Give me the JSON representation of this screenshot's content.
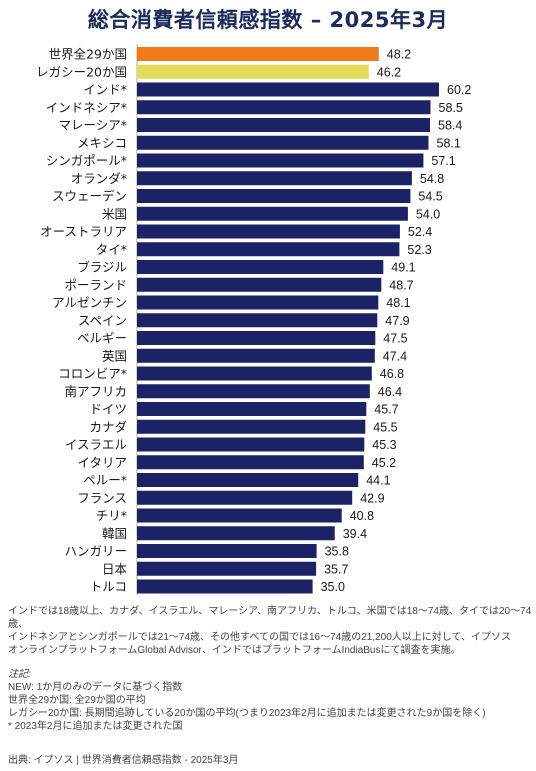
{
  "title": "総合消費者信頼感指数 – 2025年3月",
  "chart_data": {
    "type": "bar",
    "orientation": "horizontal",
    "categories": [
      "世界全29か国",
      "レガシー20か国",
      "インド*",
      "インドネシア*",
      "マレーシア*",
      "メキシコ",
      "シンガポール*",
      "オランダ*",
      "スウェーデン",
      "米国",
      "オーストラリア",
      "タイ*",
      "ブラジル",
      "ポーランド",
      "アルゼンチン",
      "スペイン",
      "ベルギー",
      "英国",
      "コロンビア*",
      "南アフリカ",
      "ドイツ",
      "カナダ",
      "イスラエル",
      "イタリア",
      "ペルー*",
      "フランス",
      "チリ*",
      "韓国",
      "ハンガリー",
      "日本",
      "トルコ"
    ],
    "values": [
      48.2,
      46.2,
      60.2,
      58.5,
      58.4,
      58.1,
      57.1,
      54.8,
      54.5,
      54.0,
      52.4,
      52.3,
      49.1,
      48.7,
      48.1,
      47.9,
      47.5,
      47.4,
      46.8,
      46.4,
      45.7,
      45.5,
      45.3,
      45.2,
      44.1,
      42.9,
      40.8,
      39.4,
      35.8,
      35.7,
      35.0
    ],
    "value_labels": [
      "48.2",
      "46.2",
      "60.2",
      "58.5",
      "58.4",
      "58.1",
      "57.1",
      "54.8",
      "54.5",
      "54.0",
      "52.4",
      "52.3",
      "49.1",
      "48.7",
      "48.1",
      "47.9",
      "47.5",
      "47.4",
      "46.8",
      "46.4",
      "45.7",
      "45.5",
      "45.3",
      "45.2",
      "44.1",
      "42.9",
      "40.8",
      "39.4",
      "35.8",
      "35.7",
      "35.0"
    ],
    "bar_colors": [
      "#f07a1a",
      "#e6dc5a",
      "#1b2266",
      "#1b2266",
      "#1b2266",
      "#1b2266",
      "#1b2266",
      "#1b2266",
      "#1b2266",
      "#1b2266",
      "#1b2266",
      "#1b2266",
      "#1b2266",
      "#1b2266",
      "#1b2266",
      "#1b2266",
      "#1b2266",
      "#1b2266",
      "#1b2266",
      "#1b2266",
      "#1b2266",
      "#1b2266",
      "#1b2266",
      "#1b2266",
      "#1b2266",
      "#1b2266",
      "#1b2266",
      "#1b2266",
      "#1b2266",
      "#1b2266",
      "#1b2266"
    ],
    "xlim": [
      0,
      60.2
    ],
    "grid": false,
    "legend": "none"
  },
  "footnotes": {
    "description": [
      "インドでは18歳以上、カナダ、イスラエル、マレーシア、南アフリカ、トルコ、米国では18～74歳、タイでは20～74歳、",
      "インドネシアとシンガポールでは21～74歳、その他すべての国では16～74歳の21,200人以上に対して、イプソス",
      "オンラインプラットフォームGlobal Advisor、インドではプラットフォームIndiaBusにて調査を実施。"
    ],
    "notes_heading": "注記:",
    "notes": [
      "NEW: 1か月のみのデータに基づく指数",
      "世界全29か国: 全29か国の平均",
      "レガシー20か国: 長期間追跡している20か国の平均(つまり2023年2月に追加または変更された9か国を除く)",
      "* 2023年2月に追加または変更された国"
    ],
    "source": "出典: イプソス  |  世界消費者信頼感指数 - 2025年3月"
  }
}
